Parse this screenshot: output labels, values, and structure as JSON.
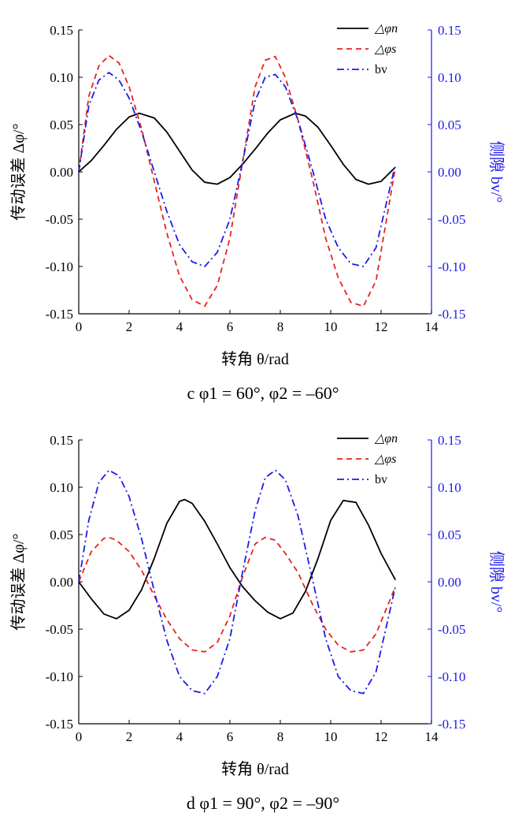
{
  "chart_data": [
    {
      "type": "line",
      "caption": "c  φ1 = 60°,  φ2 = –60°",
      "xlabel": "转角 θ/rad",
      "ylabel_left": "传动误差 Δφ/°",
      "ylabel_right": "侧隙 bv/°",
      "xlim": [
        0,
        14
      ],
      "ylim_left": [
        -0.15,
        0.15
      ],
      "ylim_right": [
        -0.15,
        0.15
      ],
      "x_ticks": [
        "0",
        "2",
        "4",
        "6",
        "8",
        "10",
        "12",
        "14"
      ],
      "y_ticks": [
        "-0.15",
        "-0.10",
        "-0.05",
        "0.00",
        "0.05",
        "0.10",
        "0.15"
      ],
      "legend_position": "top-right",
      "series": [
        {
          "name": "△φn",
          "color": "#000000",
          "dash": "solid",
          "x": [
            0,
            0.5,
            1,
            1.5,
            2,
            2.4,
            3,
            3.5,
            4,
            4.5,
            5,
            5.5,
            6,
            6.5,
            7,
            7.5,
            8,
            8.6,
            9,
            9.5,
            10,
            10.5,
            11,
            11.5,
            12,
            12.57
          ],
          "y": [
            0,
            0.012,
            0.028,
            0.045,
            0.058,
            0.062,
            0.057,
            0.042,
            0.022,
            0.002,
            -0.011,
            -0.013,
            -0.006,
            0.008,
            0.024,
            0.041,
            0.055,
            0.062,
            0.059,
            0.047,
            0.028,
            0.008,
            -0.008,
            -0.013,
            -0.01,
            0.005
          ]
        },
        {
          "name": "△φs",
          "color": "#e8221c",
          "dash": "dashed",
          "x": [
            0,
            0.4,
            0.8,
            1.2,
            1.6,
            2,
            2.5,
            3,
            3.5,
            4,
            4.5,
            5,
            5.5,
            6,
            6.5,
            7,
            7.4,
            7.8,
            8.2,
            8.7,
            9.3,
            9.8,
            10.3,
            10.8,
            11.3,
            11.8,
            12.57
          ],
          "y": [
            0,
            0.08,
            0.112,
            0.123,
            0.115,
            0.09,
            0.045,
            -0.01,
            -0.065,
            -0.11,
            -0.135,
            -0.142,
            -0.12,
            -0.07,
            0.01,
            0.09,
            0.118,
            0.122,
            0.1,
            0.055,
            -0.01,
            -0.07,
            -0.112,
            -0.138,
            -0.142,
            -0.115,
            0.005
          ]
        },
        {
          "name": "bv",
          "color": "#1c1ce8",
          "dash": "dashdot",
          "x": [
            0,
            0.4,
            0.8,
            1.2,
            1.6,
            2,
            2.5,
            3,
            3.5,
            4,
            4.5,
            5,
            5.5,
            6,
            6.5,
            7,
            7.4,
            7.8,
            8.2,
            8.7,
            9.3,
            9.8,
            10.3,
            10.8,
            11.3,
            11.8,
            12.57
          ],
          "y": [
            0,
            0.07,
            0.097,
            0.105,
            0.097,
            0.078,
            0.042,
            0.0,
            -0.042,
            -0.077,
            -0.095,
            -0.1,
            -0.085,
            -0.05,
            0.01,
            0.075,
            0.1,
            0.103,
            0.09,
            0.055,
            0.0,
            -0.05,
            -0.08,
            -0.097,
            -0.1,
            -0.08,
            0.008
          ]
        }
      ]
    },
    {
      "type": "line",
      "caption": "d  φ1 = 90°,  φ2 = –90°",
      "xlabel": "转角 θ/rad",
      "ylabel_left": "传动误差 Δφ/°",
      "ylabel_right": "侧隙 bv/°",
      "xlim": [
        0,
        14
      ],
      "ylim_left": [
        -0.15,
        0.15
      ],
      "ylim_right": [
        -0.15,
        0.15
      ],
      "x_ticks": [
        "0",
        "2",
        "4",
        "6",
        "8",
        "10",
        "12",
        "14"
      ],
      "y_ticks": [
        "-0.15",
        "-0.10",
        "-0.05",
        "0.00",
        "0.05",
        "0.10",
        "0.15"
      ],
      "legend_position": "top-right",
      "series": [
        {
          "name": "△φn",
          "color": "#000000",
          "dash": "solid",
          "x": [
            0,
            0.5,
            1,
            1.5,
            2,
            2.5,
            3,
            3.5,
            4,
            4.2,
            4.5,
            5,
            5.5,
            6,
            6.5,
            7,
            7.5,
            8,
            8.5,
            9,
            9.5,
            10,
            10.5,
            11,
            11.5,
            12,
            12.57
          ],
          "y": [
            0,
            -0.018,
            -0.034,
            -0.039,
            -0.03,
            -0.008,
            0.025,
            0.062,
            0.085,
            0.087,
            0.083,
            0.064,
            0.04,
            0.015,
            -0.005,
            -0.02,
            -0.032,
            -0.039,
            -0.033,
            -0.01,
            0.025,
            0.065,
            0.086,
            0.084,
            0.06,
            0.03,
            0.002
          ]
        },
        {
          "name": "△φs",
          "color": "#e8221c",
          "dash": "dashed",
          "x": [
            0,
            0.5,
            1,
            1.2,
            1.5,
            2,
            2.5,
            3,
            3.5,
            4,
            4.5,
            5,
            5.5,
            6,
            6.5,
            7,
            7.4,
            7.8,
            8.2,
            8.7,
            9.3,
            9.8,
            10.3,
            10.8,
            11.3,
            11.8,
            12.57
          ],
          "y": [
            0,
            0.032,
            0.046,
            0.047,
            0.044,
            0.032,
            0.012,
            -0.015,
            -0.04,
            -0.06,
            -0.072,
            -0.074,
            -0.064,
            -0.036,
            0.005,
            0.04,
            0.047,
            0.044,
            0.03,
            0.01,
            -0.025,
            -0.05,
            -0.067,
            -0.074,
            -0.072,
            -0.055,
            -0.005
          ]
        },
        {
          "name": "bv",
          "color": "#1c1ce8",
          "dash": "dashdot",
          "x": [
            0,
            0.4,
            0.8,
            1.2,
            1.6,
            2,
            2.5,
            3,
            3.5,
            4,
            4.5,
            5,
            5.5,
            6,
            6.5,
            7,
            7.4,
            7.8,
            8.2,
            8.7,
            9.3,
            9.8,
            10.3,
            10.8,
            11.3,
            11.8,
            12.57
          ],
          "y": [
            0,
            0.065,
            0.105,
            0.118,
            0.112,
            0.09,
            0.045,
            -0.01,
            -0.062,
            -0.1,
            -0.115,
            -0.118,
            -0.1,
            -0.06,
            0.01,
            0.075,
            0.11,
            0.118,
            0.108,
            0.07,
            0.0,
            -0.06,
            -0.1,
            -0.115,
            -0.118,
            -0.095,
            -0.005
          ]
        }
      ]
    }
  ]
}
